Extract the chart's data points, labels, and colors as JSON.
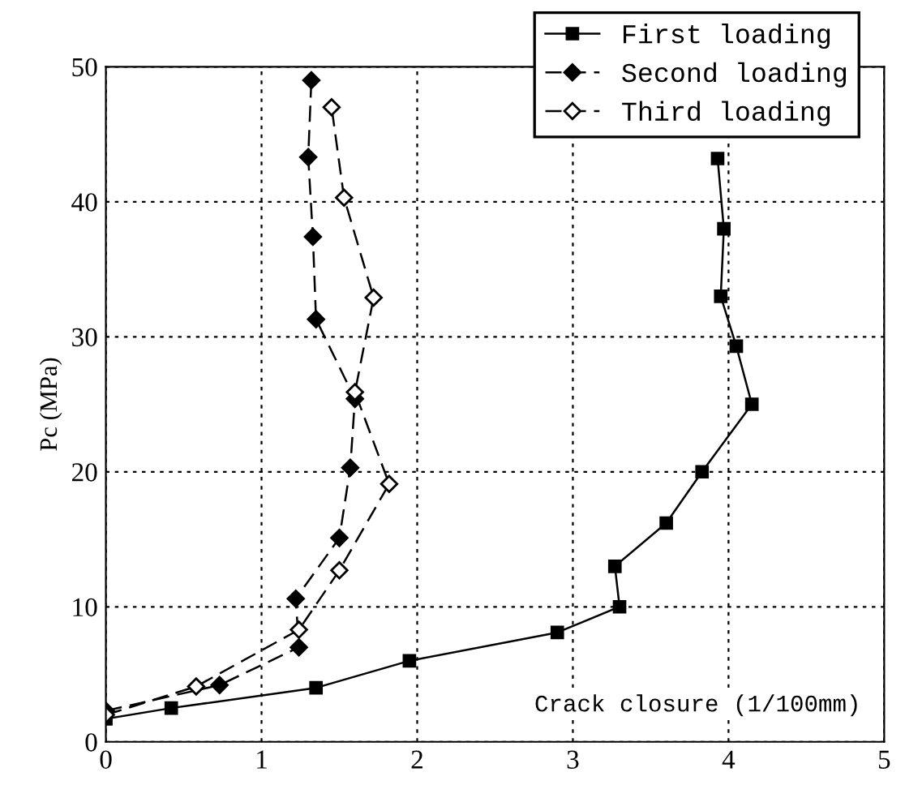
{
  "chart_data": {
    "type": "line",
    "xlabel": "Crack closure (1/100mm)",
    "ylabel": "Pc (MPa)",
    "xlim": [
      0,
      5
    ],
    "ylim": [
      0,
      50
    ],
    "xticks": [
      0,
      1,
      2,
      3,
      4,
      5
    ],
    "yticks": [
      0,
      10,
      20,
      30,
      40,
      50
    ],
    "grid": true,
    "legend": "top right",
    "series": [
      {
        "name": "First loading",
        "color": "#000000",
        "marker": "square",
        "line_style": "solid",
        "x": [
          0,
          0.42,
          1.35,
          1.95,
          2.9,
          3.3,
          3.27,
          3.6,
          3.83,
          4.15,
          4.05,
          3.95,
          3.97,
          3.93
        ],
        "values": [
          1.7,
          2.5,
          4,
          6,
          8.1,
          10,
          13,
          16.2,
          20,
          25,
          29.3,
          33,
          38,
          43.2
        ]
      },
      {
        "name": "Second loading",
        "color": "#000000",
        "marker": "diamond",
        "line_style": "dashed",
        "x": [
          0,
          0.73,
          1.24,
          1.22,
          1.5,
          1.57,
          1.6,
          1.35,
          1.33,
          1.3,
          1.32
        ],
        "values": [
          2.3,
          4.2,
          7,
          10.6,
          15.1,
          20.3,
          25.4,
          31.3,
          37.4,
          43.3,
          49
        ]
      },
      {
        "name": "Third loading",
        "color": "#000000",
        "marker": "diamond_open",
        "line_style": "dashed",
        "x": [
          0,
          0.58,
          1.24,
          1.5,
          1.82,
          1.6,
          1.72,
          1.53,
          1.45
        ],
        "values": [
          2,
          4.1,
          8.3,
          12.7,
          19.1,
          25.9,
          32.9,
          40.3,
          47
        ]
      }
    ]
  }
}
